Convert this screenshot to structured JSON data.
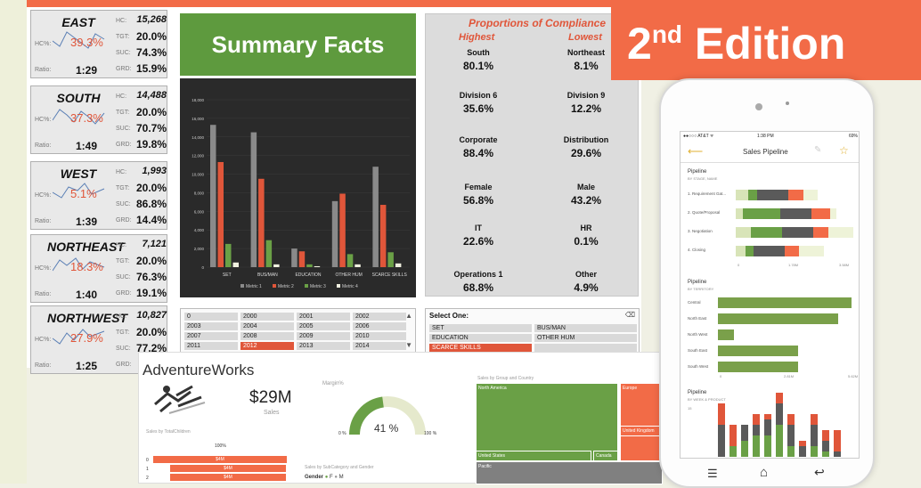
{
  "regions": [
    {
      "name": "EAST",
      "hc_label": "HC:",
      "hc": "15,268",
      "hcpct_label": "HC%:",
      "hc_pct": "39.3%",
      "tgt_label": "TGT:",
      "tgt": "20.0%",
      "suc_label": "SUC:",
      "suc": "74.3%",
      "ratio_label": "Ratio:",
      "ratio": "1:29",
      "grd_label": "GRD:",
      "grd": "15.9%"
    },
    {
      "name": "SOUTH",
      "hc_label": "HC:",
      "hc": "14,488",
      "hcpct_label": "HC%:",
      "hc_pct": "37.3%",
      "tgt_label": "TGT:",
      "tgt": "20.0%",
      "suc_label": "SUC:",
      "suc": "70.7%",
      "ratio_label": "Ratio:",
      "ratio": "1:49",
      "grd_label": "GRD:",
      "grd": "19.8%"
    },
    {
      "name": "WEST",
      "hc_label": "HC:",
      "hc": "1,993",
      "hcpct_label": "HC%:",
      "hc_pct": "5.1%",
      "tgt_label": "TGT:",
      "tgt": "20.0%",
      "suc_label": "SUC:",
      "suc": "86.8%",
      "ratio_label": "Ratio:",
      "ratio": "1:39",
      "grd_label": "GRD:",
      "grd": "14.4%"
    },
    {
      "name": "NORTHEAST",
      "hc_label": "HC:",
      "hc": "7,121",
      "hcpct_label": "HC%:",
      "hc_pct": "18.3%",
      "tgt_label": "TGT:",
      "tgt": "20.0%",
      "suc_label": "SUC:",
      "suc": "76.3%",
      "ratio_label": "Ratio:",
      "ratio": "1:40",
      "grd_label": "GRD:",
      "grd": "19.1%"
    },
    {
      "name": "NORTHWEST",
      "hc_label": "HC:",
      "hc": "10,827",
      "hcpct_label": "HC%:",
      "hc_pct": "27.9%",
      "tgt_label": "TGT:",
      "tgt": "20.0%",
      "suc_label": "SUC:",
      "suc": "77.2%",
      "ratio_label": "Ratio:",
      "ratio": "1:25",
      "grd_label": "GRD:",
      "grd": ""
    }
  ],
  "summary": {
    "title": "Summary Facts"
  },
  "chart_data": {
    "type": "bar",
    "categories": [
      "SET",
      "BUS/MAN",
      "EDUCATION",
      "OTHER HUM",
      "SCARCE SKILLS"
    ],
    "series": [
      {
        "name": "Metric 1",
        "color": "#8a8a8a",
        "values": [
          15300,
          14500,
          2000,
          7100,
          10800
        ]
      },
      {
        "name": "Metric 2",
        "color": "#e0563a",
        "values": [
          11300,
          9500,
          1700,
          7900,
          6700
        ]
      },
      {
        "name": "Metric 3",
        "color": "#6aa046",
        "values": [
          2500,
          2900,
          300,
          1400,
          1600
        ]
      },
      {
        "name": "Metric 4",
        "color": "#f0f0e0",
        "values": [
          500,
          300,
          100,
          300,
          400
        ]
      }
    ],
    "yticks": [
      "0",
      "2,000",
      "4,000",
      "6,000",
      "8,000",
      "10,000",
      "12,000",
      "14,000",
      "16,000",
      "18,000"
    ],
    "ylim": [
      0,
      18000
    ]
  },
  "compliance": {
    "title": "Proportions of Compliance",
    "highest": "Highest",
    "lowest": "Lowest",
    "pairs": [
      {
        "hk": "South",
        "hv": "80.1%",
        "lk": "Northeast",
        "lv": "8.1%"
      },
      {
        "hk": "Division 6",
        "hv": "35.6%",
        "lk": "Division 9",
        "lv": "12.2%"
      },
      {
        "hk": "Corporate",
        "hv": "88.4%",
        "lk": "Distribution",
        "lv": "29.6%"
      },
      {
        "hk": "Female",
        "hv": "56.8%",
        "lk": "Male",
        "lv": "43.2%"
      },
      {
        "hk": "IT",
        "hv": "22.6%",
        "lk": "HR",
        "lv": "0.1%"
      },
      {
        "hk": "Operations 1",
        "hv": "68.8%",
        "lk": "Other",
        "lv": "4.9%"
      }
    ]
  },
  "years": [
    "0",
    "2000",
    "2001",
    "2002",
    "2003",
    "2004",
    "2005",
    "2006",
    "2007",
    "2008",
    "2009",
    "2010",
    "2011",
    "2012",
    "2013",
    "2014"
  ],
  "selector": {
    "title": "Select One:",
    "items": [
      "SET",
      "BUS/MAN",
      "EDUCATION",
      "OTHER HUM",
      "SCARCE SKILLS",
      ""
    ]
  },
  "edition": {
    "number": "2",
    "suffix": "nd",
    "word": " Edition"
  },
  "adventure": {
    "brand": "AdventureWorks",
    "sales": "$29M",
    "sales_label": "Sales",
    "margin_label": "Margin%",
    "gauge_pct": "41 %",
    "gauge_min": "0 %",
    "gauge_max": "100 %",
    "children_label": "Sales by TotalChildren",
    "children_header": "100%",
    "rows": [
      {
        "k": "0",
        "v": "$4M"
      },
      {
        "k": "1",
        "v": "$4M"
      },
      {
        "k": "2",
        "v": "$4M"
      }
    ],
    "subcat_label": "Sales by SubCategory and Gender",
    "gender_label": "Gender",
    "g_f": "F",
    "g_m": "M",
    "group_label": "Sales by Group and Country",
    "tiles": [
      "North America",
      "Europe",
      "United States",
      "Canada",
      "United Kingdom",
      "Pacific"
    ]
  },
  "phone": {
    "carrier": "●●○○○ AT&T ᯤ",
    "time": "1:38 PM",
    "battery": "69%",
    "header": "Sales Pipeline",
    "p1_title": "Pipeline",
    "p1_sub": "BY STAGE, NAME",
    "stages": [
      {
        "label": "1. Requirement Gat...",
        "segs": [
          0.1,
          0.07,
          0.25,
          0.12,
          0.12
        ]
      },
      {
        "label": "2. Quote/Proposal",
        "segs": [
          0.06,
          0.3,
          0.25,
          0.15,
          0.05
        ]
      },
      {
        "label": "3. Negotiation",
        "segs": [
          0.12,
          0.25,
          0.25,
          0.12,
          0.2
        ]
      },
      {
        "label": "4. Closing",
        "segs": [
          0.08,
          0.06,
          0.25,
          0.12,
          0.2
        ]
      }
    ],
    "p1_axis": [
      "0",
      "1.78M",
      "3.58M"
    ],
    "p2_title": "Pipeline",
    "p2_sub": "BY TERRITORY",
    "territories": [
      {
        "label": "Central",
        "v": 1.0
      },
      {
        "label": "North East",
        "v": 0.9
      },
      {
        "label": "North West",
        "v": 0.12
      },
      {
        "label": "South East",
        "v": 0.6
      },
      {
        "label": "South West",
        "v": 0.6
      }
    ],
    "p2_axis": [
      "0",
      "2.81M",
      "5.62M"
    ],
    "p3_title": "Pipeline",
    "p3_sub": "BY WEEK & PRODUCT",
    "p3_tick": "15",
    "weeks": [
      [
        0,
        0.3,
        0.2
      ],
      [
        0.1,
        0,
        0.2
      ],
      [
        0.15,
        0.15,
        0
      ],
      [
        0.2,
        0.1,
        0.1
      ],
      [
        0.2,
        0.15,
        0.05
      ],
      [
        0.3,
        0.2,
        0.1
      ],
      [
        0.1,
        0.2,
        0.1
      ],
      [
        0,
        0.1,
        0.05
      ],
      [
        0.1,
        0.2,
        0.1
      ],
      [
        0.05,
        0.1,
        0.1
      ],
      [
        0,
        0.05,
        0.2
      ]
    ]
  }
}
